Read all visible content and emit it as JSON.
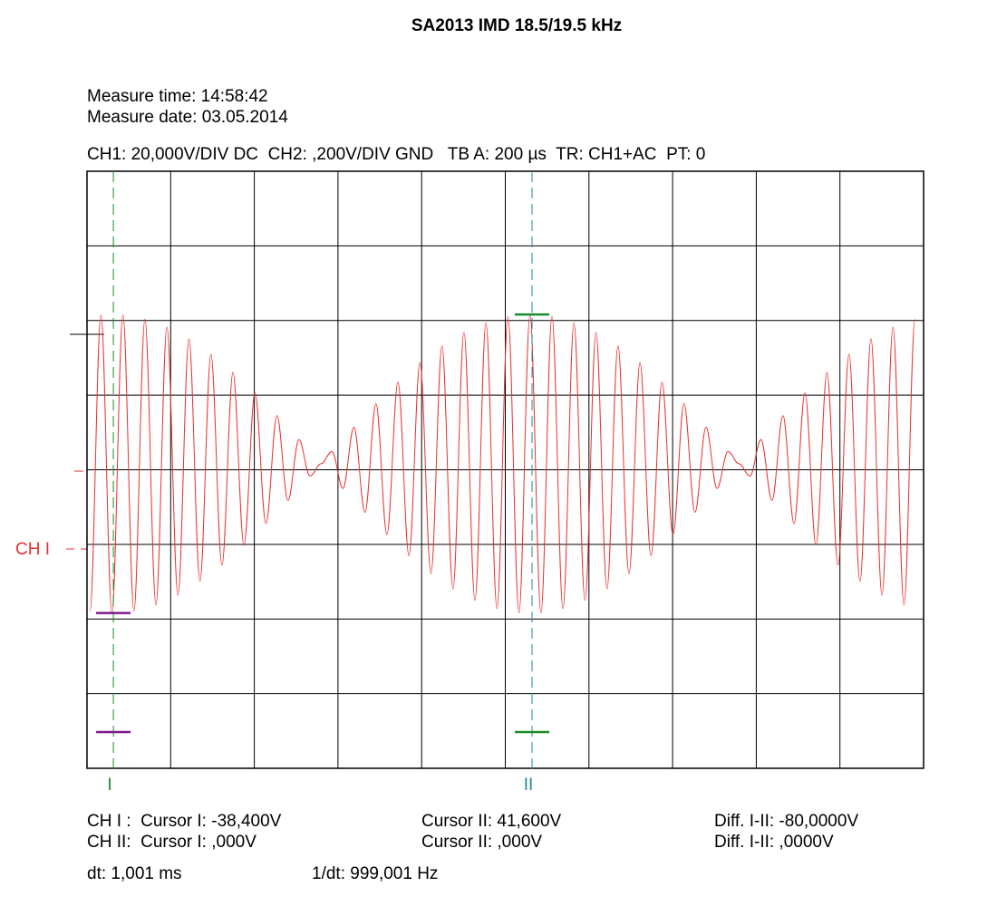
{
  "header": {
    "title": "SA2013 IMD 18.5/19.5 kHz",
    "measure_time": "Measure time: 14:58:42",
    "measure_date": "Measure date: 03.05.2014",
    "settings": "CH1: 20,000V/DIV DC  CH2: ,200V/DIV GND   TB A: 200 µs  TR: CH1+AC  PT: 0"
  },
  "chart_data": {
    "type": "line",
    "channel_label": "CH I",
    "xlim": [
      0,
      2000
    ],
    "ylim": [
      -80,
      80
    ],
    "xticks": [
      0,
      200,
      400,
      600,
      800,
      1000,
      1200,
      1400,
      1600,
      1800,
      2000
    ],
    "yticks": [
      -80,
      -60,
      -40,
      -20,
      0,
      20,
      40,
      60,
      80
    ],
    "grid": true,
    "series": [
      {
        "color": "#e8312f",
        "x": [
          7,
          33.3,
          59.6,
          85.9,
          112.2,
          138.5,
          164.8,
          191.1,
          217.4,
          243.7,
          270,
          296.3,
          322.6,
          348.9,
          375.2,
          401.5,
          427.8,
          454.1,
          480.4,
          506.7,
          533,
          559.3,
          585.6,
          611.9,
          638.2,
          664.5,
          690.8,
          717.1,
          743.4,
          769.7,
          796,
          822.3,
          848.6,
          874.9,
          901.2,
          927.5,
          953.8,
          980.1,
          1006.4,
          1032.7,
          1059,
          1085.3,
          1111.6,
          1137.9,
          1164.2,
          1190.5,
          1216.8,
          1243.1,
          1269.4,
          1295.7,
          1322,
          1348.3,
          1374.6,
          1400.9,
          1427.2,
          1453.5,
          1479.8,
          1506.1,
          1532.4,
          1558.7,
          1585,
          1611.3,
          1637.6,
          1663.9,
          1690.2,
          1716.5,
          1742.8,
          1769.1,
          1795.4,
          1821.7,
          1848,
          1874.3,
          1900.6,
          1926.9,
          1953.2,
          1979.5
        ],
        "values": [
          -37.9,
          41.5,
          -38.4,
          41.5,
          -37.9,
          40.4,
          -36.2,
          38.2,
          -33.6,
          35.1,
          -29.9,
          31.0,
          -25.5,
          26.1,
          -20.2,
          20.6,
          -14.4,
          14.5,
          -8.2,
          8.1,
          -1.7,
          1.6,
          4.9,
          -5.0,
          11.4,
          -11.4,
          17.7,
          -17.4,
          23.5,
          -23.0,
          28.7,
          -27.8,
          33.2,
          -31.9,
          36.8,
          -35.0,
          39.4,
          -37.2,
          41.1,
          -38.3,
          41.6,
          -38.3,
          41.1,
          -37.2,
          39.4,
          -35.0,
          36.8,
          -31.9,
          33.2,
          -27.8,
          28.7,
          -23.0,
          23.5,
          -17.4,
          17.7,
          -11.4,
          11.4,
          -5.0,
          4.9,
          1.6,
          -1.7,
          8.1,
          -8.2,
          14.5,
          -14.4,
          20.6,
          -20.2,
          26.1,
          -25.5,
          31.0,
          -29.9,
          35.1,
          -33.6,
          38.2,
          -36.2,
          40.4
        ]
      }
    ],
    "cursors": [
      {
        "label": "I",
        "x": 63,
        "level": -38.4,
        "color": "#1a8a2a",
        "level_color": "#7a1a8a"
      },
      {
        "label": "II",
        "x": 1064,
        "level": 41.6,
        "color": "#1f8a9a",
        "level_color": "#1a8a2a"
      }
    ]
  },
  "readouts": {
    "rows": [
      [
        "CH I :  Cursor I: -38,400V",
        "Cursor II: 41,600V",
        "Diff. I-II: -80,0000V"
      ],
      [
        "CH II:  Cursor I: ,000V",
        "Cursor II: ,000V",
        "Diff. I-II: ,0000V"
      ],
      [
        "dt: 1,001 ms",
        "1/dt: 999,001 Hz"
      ]
    ]
  }
}
